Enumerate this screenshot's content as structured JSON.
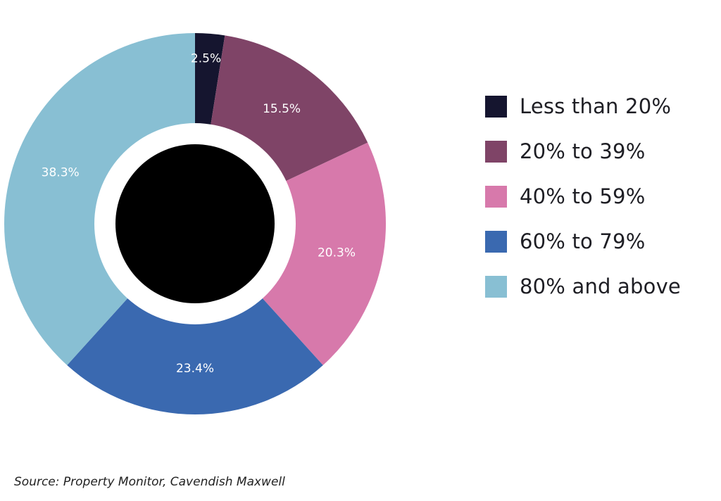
{
  "chart_data": {
    "type": "pie",
    "variant": "donut",
    "categories": [
      "Less than 20%",
      "20% to 39%",
      "40% to 59%",
      "60% to 79%",
      "80% and above"
    ],
    "values": [
      2.5,
      15.5,
      20.3,
      23.4,
      38.3
    ],
    "labels": [
      "2.5%",
      "15.5%",
      "20.3%",
      "23.4%",
      "38.3%"
    ],
    "colors": [
      "#15152f",
      "#7f4467",
      "#d779ab",
      "#3a69b0",
      "#88bfd3"
    ],
    "legend_position": "right",
    "source": "Source: Property Monitor, Cavendish Maxwell"
  }
}
